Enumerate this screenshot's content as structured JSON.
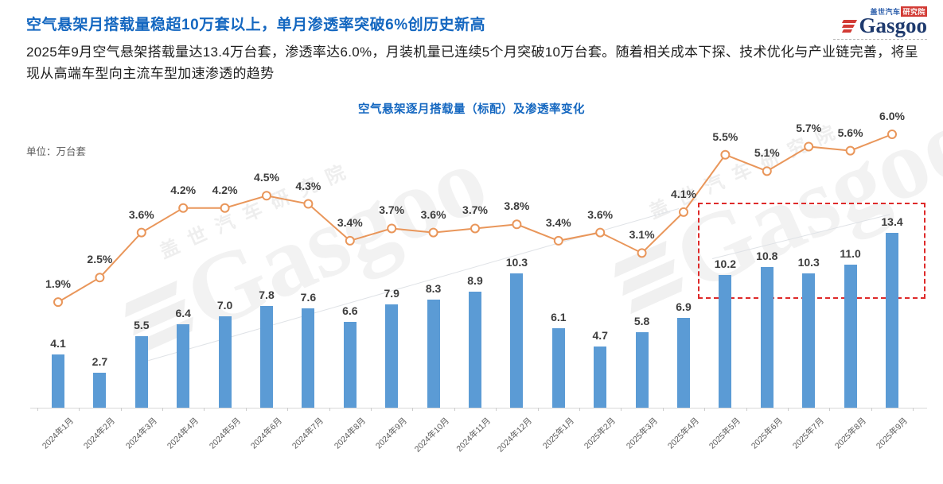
{
  "header": {
    "title": "空气悬架月搭载量稳超10万套以上，单月渗透率突破6%创历史新高",
    "description": "2025年9月空气悬架搭载量达13.4万台套，渗透率达6.0%，月装机量已连续5个月突破10万台套。随着相关成本下探、技术优化与产业链完善，将呈现从高端车型向主流车型加速渗透的趋势"
  },
  "logo": {
    "badge_left": "盖世汽车",
    "badge_right": "研究院",
    "brand": "Gasgoo"
  },
  "chart": {
    "title": "空气悬架逐月搭载量（标配）及渗透率变化",
    "unit_label": "单位：万台套"
  },
  "watermark": {
    "text": "Gasgoo",
    "subtext": "盖世汽车研究院"
  },
  "chart_data": {
    "type": "bar",
    "title": "空气悬架逐月搭载量（标配）及渗透率变化",
    "unit": "万台套",
    "categories": [
      "2024年1月",
      "2024年2月",
      "2024年3月",
      "2024年4月",
      "2024年5月",
      "2024年6月",
      "2024年7月",
      "2024年8月",
      "2024年9月",
      "2024年10月",
      "2024年11月",
      "2024年12月",
      "2025年1月",
      "2025年2月",
      "2025年3月",
      "2025年4月",
      "2025年5月",
      "2025年6月",
      "2025年7月",
      "2025年8月",
      "2025年9月"
    ],
    "series": [
      {
        "name": "搭载量（标配）",
        "type": "bar",
        "color": "#5B9BD5",
        "values": [
          4.1,
          2.7,
          5.5,
          6.4,
          7.0,
          7.8,
          7.6,
          6.6,
          7.9,
          8.3,
          8.9,
          10.3,
          6.1,
          4.7,
          5.8,
          6.9,
          10.2,
          10.8,
          10.3,
          11.0,
          13.4
        ]
      },
      {
        "name": "渗透率",
        "type": "line",
        "color": "#E9965A",
        "unit": "%",
        "values": [
          1.9,
          2.5,
          3.6,
          4.2,
          4.2,
          4.5,
          4.3,
          3.4,
          3.7,
          3.6,
          3.7,
          3.8,
          3.4,
          3.6,
          3.1,
          4.1,
          5.5,
          5.1,
          5.7,
          5.6,
          6.0
        ]
      }
    ],
    "legend_position": "none",
    "gridlines": false,
    "value_labels": true,
    "highlight": {
      "type": "dashed-rect",
      "color": "#DE2A2A",
      "from_index": 16,
      "to_index": 20
    }
  }
}
